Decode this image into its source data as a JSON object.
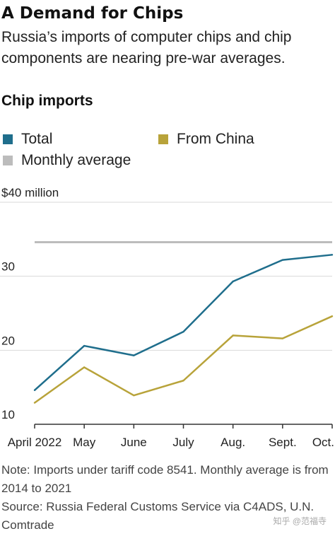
{
  "header": {
    "title": "A Demand for Chips",
    "subtitle": "Russia’s imports of computer chips and chip components are nearing pre-war averages."
  },
  "chart_data": {
    "type": "line",
    "title": "Chip imports",
    "categories": [
      "April 2022",
      "May",
      "June",
      "July",
      "Aug.",
      "Sept.",
      "Oct."
    ],
    "series": [
      {
        "name": "Total",
        "values": [
          14.6,
          20.6,
          19.3,
          22.5,
          29.3,
          32.2,
          32.9
        ]
      },
      {
        "name": "From China",
        "values": [
          12.9,
          17.7,
          13.9,
          15.9,
          22.0,
          21.6,
          24.6
        ]
      }
    ],
    "reference_line": {
      "name": "Monthly average",
      "value": 34.6
    },
    "ylim": [
      10,
      40
    ],
    "yticks": [
      10,
      20,
      30,
      40
    ],
    "ytick_labels": [
      "10",
      "20",
      "30",
      "$40 million"
    ],
    "xlabel": "",
    "ylabel": "",
    "grid": "horizontal",
    "legend_position": "top",
    "colors": {
      "Total": "#1f6e8c",
      "From China": "#b8a33a",
      "Monthly average": "#bcbcbc",
      "grid": "#d9d9d9",
      "axis": "#333333"
    }
  },
  "legend": {
    "total": "Total",
    "china": "From China",
    "average": "Monthly average"
  },
  "notes": {
    "note": "Note: Imports under tariff code 8541. Monthly average is from 2014 to 2021",
    "source": "Source: Russia Federal Customs Service via C4ADS, U.N. Comtrade"
  },
  "watermark": "知乎 @范福寺"
}
